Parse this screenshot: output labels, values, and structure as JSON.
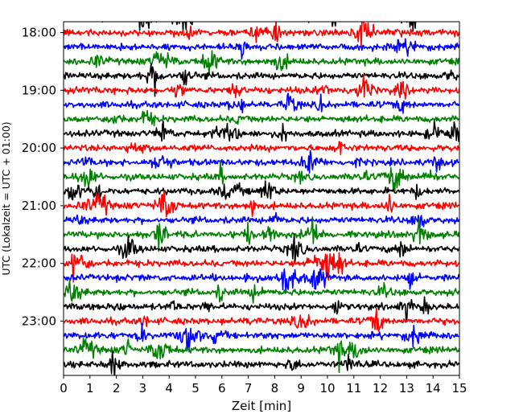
{
  "chart_data": {
    "type": "line",
    "title": "",
    "xlabel": "Zeit  [min]",
    "ylabel": "UTC (Lokalzeit = UTC + 01:00)",
    "xlim": [
      0,
      15
    ],
    "x_ticks": [
      0,
      1,
      2,
      3,
      4,
      5,
      6,
      7,
      8,
      9,
      10,
      11,
      12,
      13,
      14,
      15
    ],
    "y_ticks": [
      "18:00",
      "19:00",
      "20:00",
      "21:00",
      "22:00",
      "23:00"
    ],
    "trace_interval_min": 15,
    "first_trace": "17:45",
    "last_trace": "23:45",
    "trace_colors": [
      "#000000",
      "#ff0000",
      "#0000ff",
      "#008000"
    ],
    "grid": false,
    "legend": "none"
  }
}
